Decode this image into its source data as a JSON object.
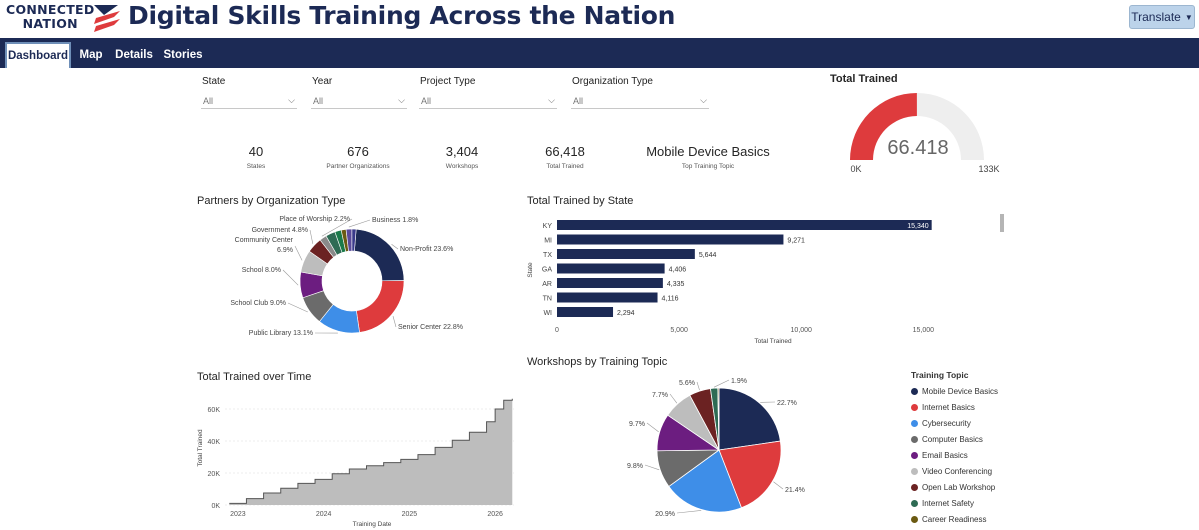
{
  "header": {
    "logo_line1": "CONNECTED",
    "logo_line2": "NATION",
    "title": "Digital Skills Training Across the Nation",
    "translate_label": "Translate"
  },
  "nav": {
    "tabs": [
      "Dashboard",
      "Map",
      "Details",
      "Stories"
    ],
    "active": "Dashboard"
  },
  "filters": [
    {
      "label": "State",
      "value": "All"
    },
    {
      "label": "Year",
      "value": "All"
    },
    {
      "label": "Project Type",
      "value": "All"
    },
    {
      "label": "Organization Type",
      "value": "All"
    }
  ],
  "kpis": [
    {
      "value": "40",
      "label": "States"
    },
    {
      "value": "676",
      "label": "Partner Organizations"
    },
    {
      "value": "3,404",
      "label": "Workshops"
    },
    {
      "value": "66,418",
      "label": "Total Trained"
    },
    {
      "value": "Mobile Device Basics",
      "label": "Top Training Topic"
    }
  ],
  "colors": {
    "navy": "#1c2a55",
    "red": "#de3b3d",
    "blue": "#3e8ee8",
    "gray": "#6b6b6b",
    "purple": "#6c1d80",
    "lightgray": "#bdbdbd",
    "maroon": "#6b2222",
    "green": "#2e6b54",
    "olive": "#6b5a12"
  },
  "chart_data": [
    {
      "type": "gauge",
      "title": "Total Trained",
      "value": 66418,
      "value_label": "66.418",
      "min": 0,
      "max": 133000,
      "min_label": "0K",
      "max_label": "133K"
    },
    {
      "type": "donut",
      "title": "Partners by Organization Type",
      "slices": [
        {
          "label": "Non-Profit",
          "value": 23.6,
          "text": "Non-Profit 23.6%"
        },
        {
          "label": "Senior Center",
          "value": 22.8,
          "text": "Senior Center 22.8%"
        },
        {
          "label": "Public Library",
          "value": 13.1,
          "text": "Public Library 13.1%"
        },
        {
          "label": "School Club",
          "value": 9.0,
          "text": "School Club 9.0%"
        },
        {
          "label": "School",
          "value": 8.0,
          "text": "School 8.0%"
        },
        {
          "label": "Community Center",
          "value": 6.9,
          "text1": "Community Center",
          "text2": "6.9%"
        },
        {
          "label": "Government",
          "value": 4.8,
          "text": "Government 4.8%"
        },
        {
          "label": "Place of Worship",
          "value": 2.2,
          "text": "Place of Worship 2.2%"
        },
        {
          "label": "Other-1",
          "value": 3.0
        },
        {
          "label": "Other-2",
          "value": 2.0
        },
        {
          "label": "Other-3",
          "value": 1.5
        },
        {
          "label": "Business",
          "value": 1.8,
          "text": "Business 1.8%"
        },
        {
          "label": "Other-4",
          "value": 1.3
        }
      ]
    },
    {
      "type": "bar",
      "orientation": "horizontal",
      "title": "Total Trained by State",
      "xlabel": "Total Trained",
      "ylabel": "State",
      "categories": [
        "KY",
        "MI",
        "TX",
        "GA",
        "AR",
        "TN",
        "WI"
      ],
      "values": [
        15340,
        9271,
        5644,
        4406,
        4335,
        4116,
        2294
      ],
      "value_labels": [
        "15,340",
        "9,271",
        "5,644",
        "4,406",
        "4,335",
        "4,116",
        "2,294"
      ],
      "xticks": [
        0,
        5000,
        10000,
        15000
      ],
      "xtick_labels": [
        "0",
        "5,000",
        "10,000",
        "15,000"
      ],
      "xlim": [
        0,
        16500
      ]
    },
    {
      "type": "area",
      "title": "Total Trained over Time",
      "xlabel": "Training Date",
      "ylabel": "Total Trained",
      "x": [
        2022.9,
        2023.1,
        2023.3,
        2023.5,
        2023.7,
        2023.9,
        2024.1,
        2024.3,
        2024.5,
        2024.7,
        2024.9,
        2025.1,
        2025.3,
        2025.5,
        2025.7,
        2025.9,
        2026.0,
        2026.1,
        2026.2
      ],
      "y": [
        1000,
        4000,
        7500,
        10500,
        13500,
        16000,
        19500,
        22500,
        24500,
        26500,
        28500,
        31500,
        36000,
        40500,
        45500,
        52000,
        60000,
        65500,
        66418
      ],
      "xticks": [
        2023,
        2024,
        2025,
        2026
      ],
      "xtick_labels": [
        "2023",
        "2024",
        "2025",
        "2026"
      ],
      "yticks": [
        0,
        20000,
        40000,
        60000
      ],
      "ytick_labels": [
        "0K",
        "20K",
        "40K",
        "60K"
      ],
      "xlim": [
        2022.85,
        2026.22
      ],
      "ylim": [
        0,
        70000
      ]
    },
    {
      "type": "pie",
      "title": "Workshops by Training Topic",
      "legend_title": "Training Topic",
      "legend_position": "right",
      "slices": [
        {
          "label": "Mobile Device Basics",
          "value": 22.7,
          "text": "22.7%"
        },
        {
          "label": "Internet Basics",
          "value": 21.4,
          "text": "21.4%"
        },
        {
          "label": "Cybersecurity",
          "value": 20.9,
          "text": "20.9%"
        },
        {
          "label": "Computer Basics",
          "value": 9.8,
          "text": "9.8%"
        },
        {
          "label": "Email Basics",
          "value": 9.7,
          "text": "9.7%"
        },
        {
          "label": "Video Conferencing",
          "value": 7.7,
          "text": "7.7%"
        },
        {
          "label": "Open Lab Workshop",
          "value": 5.6,
          "text": "5.6%"
        },
        {
          "label": "Internet Safety",
          "value": 1.9,
          "text": "1.9%"
        },
        {
          "label": "Career Readiness",
          "value": 0.3,
          "text": ""
        }
      ]
    }
  ]
}
